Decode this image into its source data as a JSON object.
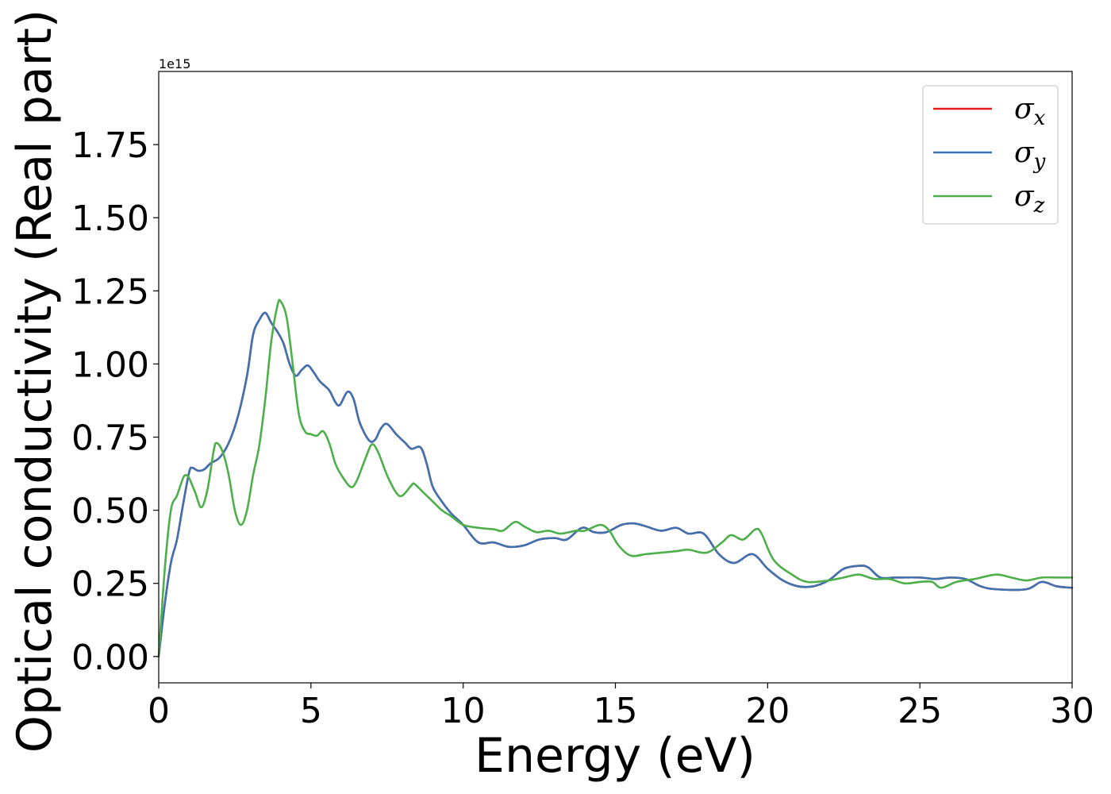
{
  "chart_data": {
    "type": "line",
    "xlabel": "Energy (eV)",
    "ylabel": "Optical conductivity (Real part)",
    "y_offset_text": "1e15",
    "xlim": [
      0,
      30
    ],
    "ylim": [
      -0.09,
      2.0
    ],
    "x_ticks": [
      0,
      5,
      10,
      15,
      20,
      25,
      30
    ],
    "x_tick_labels": [
      "0",
      "5",
      "10",
      "15",
      "20",
      "25",
      "30"
    ],
    "y_ticks": [
      0.0,
      0.25,
      0.5,
      0.75,
      1.0,
      1.25,
      1.5,
      1.75
    ],
    "y_tick_labels": [
      "0.00",
      "0.25",
      "0.50",
      "0.75",
      "1.00",
      "1.25",
      "1.50",
      "1.75"
    ],
    "grid": false,
    "legend_position": "top-right",
    "series": [
      {
        "name": "σx",
        "symbol": "σ",
        "subscript": "x",
        "color": "#e41a1c",
        "points": [
          [
            0,
            0
          ],
          [
            0.2,
            0.18
          ],
          [
            0.4,
            0.32
          ],
          [
            0.6,
            0.4
          ],
          [
            0.8,
            0.52
          ],
          [
            1.0,
            0.63
          ],
          [
            1.1,
            0.645
          ],
          [
            1.3,
            0.635
          ],
          [
            1.5,
            0.64
          ],
          [
            1.7,
            0.66
          ],
          [
            2.0,
            0.68
          ],
          [
            2.3,
            0.73
          ],
          [
            2.6,
            0.82
          ],
          [
            2.9,
            0.96
          ],
          [
            3.1,
            1.1
          ],
          [
            3.3,
            1.15
          ],
          [
            3.5,
            1.175
          ],
          [
            3.7,
            1.14
          ],
          [
            3.9,
            1.11
          ],
          [
            4.1,
            1.07
          ],
          [
            4.3,
            1.0
          ],
          [
            4.5,
            0.96
          ],
          [
            4.7,
            0.98
          ],
          [
            4.9,
            0.995
          ],
          [
            5.1,
            0.97
          ],
          [
            5.3,
            0.94
          ],
          [
            5.6,
            0.91
          ],
          [
            5.8,
            0.87
          ],
          [
            5.95,
            0.86
          ],
          [
            6.2,
            0.905
          ],
          [
            6.4,
            0.88
          ],
          [
            6.6,
            0.8
          ],
          [
            6.9,
            0.74
          ],
          [
            7.1,
            0.74
          ],
          [
            7.3,
            0.78
          ],
          [
            7.5,
            0.795
          ],
          [
            7.8,
            0.76
          ],
          [
            8.1,
            0.73
          ],
          [
            8.3,
            0.71
          ],
          [
            8.6,
            0.715
          ],
          [
            8.8,
            0.66
          ],
          [
            9.0,
            0.58
          ],
          [
            9.3,
            0.53
          ],
          [
            9.6,
            0.49
          ],
          [
            10.0,
            0.45
          ],
          [
            10.5,
            0.39
          ],
          [
            11.0,
            0.39
          ],
          [
            11.5,
            0.375
          ],
          [
            12.0,
            0.38
          ],
          [
            12.5,
            0.4
          ],
          [
            13.0,
            0.405
          ],
          [
            13.4,
            0.4
          ],
          [
            13.9,
            0.44
          ],
          [
            14.3,
            0.425
          ],
          [
            14.7,
            0.425
          ],
          [
            15.2,
            0.45
          ],
          [
            15.6,
            0.455
          ],
          [
            16.0,
            0.445
          ],
          [
            16.5,
            0.43
          ],
          [
            17.0,
            0.44
          ],
          [
            17.4,
            0.42
          ],
          [
            17.9,
            0.42
          ],
          [
            18.4,
            0.35
          ],
          [
            18.9,
            0.32
          ],
          [
            19.5,
            0.35
          ],
          [
            20.0,
            0.3
          ],
          [
            20.5,
            0.26
          ],
          [
            21.0,
            0.24
          ],
          [
            21.5,
            0.24
          ],
          [
            22.0,
            0.26
          ],
          [
            22.5,
            0.3
          ],
          [
            23.0,
            0.31
          ],
          [
            23.3,
            0.305
          ],
          [
            23.7,
            0.27
          ],
          [
            24.2,
            0.27
          ],
          [
            25.0,
            0.27
          ],
          [
            25.5,
            0.265
          ],
          [
            26.0,
            0.27
          ],
          [
            26.5,
            0.265
          ],
          [
            27.0,
            0.24
          ],
          [
            27.5,
            0.23
          ],
          [
            28.5,
            0.23
          ],
          [
            29.0,
            0.255
          ],
          [
            29.5,
            0.24
          ],
          [
            30.0,
            0.235
          ]
        ]
      },
      {
        "name": "σy",
        "symbol": "σ",
        "subscript": "y",
        "color": "#3f72b0",
        "points": [
          [
            0,
            0
          ],
          [
            0.2,
            0.18
          ],
          [
            0.4,
            0.32
          ],
          [
            0.6,
            0.4
          ],
          [
            0.8,
            0.52
          ],
          [
            1.0,
            0.63
          ],
          [
            1.1,
            0.645
          ],
          [
            1.3,
            0.635
          ],
          [
            1.5,
            0.64
          ],
          [
            1.7,
            0.66
          ],
          [
            2.0,
            0.68
          ],
          [
            2.3,
            0.73
          ],
          [
            2.6,
            0.82
          ],
          [
            2.9,
            0.96
          ],
          [
            3.1,
            1.1
          ],
          [
            3.3,
            1.15
          ],
          [
            3.5,
            1.175
          ],
          [
            3.7,
            1.14
          ],
          [
            3.9,
            1.11
          ],
          [
            4.1,
            1.07
          ],
          [
            4.3,
            1.0
          ],
          [
            4.5,
            0.96
          ],
          [
            4.7,
            0.98
          ],
          [
            4.9,
            0.995
          ],
          [
            5.1,
            0.97
          ],
          [
            5.3,
            0.94
          ],
          [
            5.6,
            0.91
          ],
          [
            5.8,
            0.87
          ],
          [
            5.95,
            0.86
          ],
          [
            6.2,
            0.905
          ],
          [
            6.4,
            0.88
          ],
          [
            6.6,
            0.8
          ],
          [
            6.9,
            0.74
          ],
          [
            7.1,
            0.74
          ],
          [
            7.3,
            0.78
          ],
          [
            7.5,
            0.795
          ],
          [
            7.8,
            0.76
          ],
          [
            8.1,
            0.73
          ],
          [
            8.3,
            0.71
          ],
          [
            8.6,
            0.715
          ],
          [
            8.8,
            0.66
          ],
          [
            9.0,
            0.58
          ],
          [
            9.3,
            0.53
          ],
          [
            9.6,
            0.49
          ],
          [
            10.0,
            0.45
          ],
          [
            10.5,
            0.39
          ],
          [
            11.0,
            0.39
          ],
          [
            11.5,
            0.375
          ],
          [
            12.0,
            0.38
          ],
          [
            12.5,
            0.4
          ],
          [
            13.0,
            0.405
          ],
          [
            13.4,
            0.4
          ],
          [
            13.9,
            0.44
          ],
          [
            14.3,
            0.425
          ],
          [
            14.7,
            0.425
          ],
          [
            15.2,
            0.45
          ],
          [
            15.6,
            0.455
          ],
          [
            16.0,
            0.445
          ],
          [
            16.5,
            0.43
          ],
          [
            17.0,
            0.44
          ],
          [
            17.4,
            0.42
          ],
          [
            17.9,
            0.42
          ],
          [
            18.4,
            0.35
          ],
          [
            18.9,
            0.32
          ],
          [
            19.5,
            0.35
          ],
          [
            20.0,
            0.3
          ],
          [
            20.5,
            0.26
          ],
          [
            21.0,
            0.24
          ],
          [
            21.5,
            0.24
          ],
          [
            22.0,
            0.26
          ],
          [
            22.5,
            0.3
          ],
          [
            23.0,
            0.31
          ],
          [
            23.3,
            0.305
          ],
          [
            23.7,
            0.27
          ],
          [
            24.2,
            0.27
          ],
          [
            25.0,
            0.27
          ],
          [
            25.5,
            0.265
          ],
          [
            26.0,
            0.27
          ],
          [
            26.5,
            0.265
          ],
          [
            27.0,
            0.24
          ],
          [
            27.5,
            0.23
          ],
          [
            28.5,
            0.23
          ],
          [
            29.0,
            0.255
          ],
          [
            29.5,
            0.24
          ],
          [
            30.0,
            0.235
          ]
        ]
      },
      {
        "name": "σz",
        "symbol": "σ",
        "subscript": "z",
        "color": "#4daf4a",
        "points": [
          [
            0,
            0
          ],
          [
            0.2,
            0.3
          ],
          [
            0.4,
            0.5
          ],
          [
            0.6,
            0.55
          ],
          [
            0.8,
            0.61
          ],
          [
            0.9,
            0.62
          ],
          [
            1.0,
            0.61
          ],
          [
            1.2,
            0.56
          ],
          [
            1.4,
            0.51
          ],
          [
            1.6,
            0.57
          ],
          [
            1.8,
            0.7
          ],
          [
            1.9,
            0.73
          ],
          [
            2.1,
            0.7
          ],
          [
            2.3,
            0.62
          ],
          [
            2.5,
            0.5
          ],
          [
            2.7,
            0.45
          ],
          [
            2.9,
            0.5
          ],
          [
            3.1,
            0.62
          ],
          [
            3.3,
            0.72
          ],
          [
            3.5,
            0.88
          ],
          [
            3.7,
            1.08
          ],
          [
            3.9,
            1.2
          ],
          [
            4.0,
            1.215
          ],
          [
            4.2,
            1.16
          ],
          [
            4.4,
            1.0
          ],
          [
            4.6,
            0.83
          ],
          [
            4.8,
            0.77
          ],
          [
            5.0,
            0.76
          ],
          [
            5.2,
            0.755
          ],
          [
            5.4,
            0.77
          ],
          [
            5.6,
            0.73
          ],
          [
            5.8,
            0.66
          ],
          [
            6.0,
            0.62
          ],
          [
            6.3,
            0.58
          ],
          [
            6.5,
            0.6
          ],
          [
            6.8,
            0.68
          ],
          [
            7.0,
            0.725
          ],
          [
            7.2,
            0.7
          ],
          [
            7.5,
            0.62
          ],
          [
            7.8,
            0.56
          ],
          [
            8.0,
            0.55
          ],
          [
            8.3,
            0.585
          ],
          [
            8.4,
            0.59
          ],
          [
            8.7,
            0.56
          ],
          [
            9.0,
            0.53
          ],
          [
            9.3,
            0.5
          ],
          [
            9.6,
            0.48
          ],
          [
            10.0,
            0.45
          ],
          [
            10.5,
            0.44
          ],
          [
            11.0,
            0.435
          ],
          [
            11.3,
            0.43
          ],
          [
            11.7,
            0.46
          ],
          [
            12.0,
            0.445
          ],
          [
            12.4,
            0.425
          ],
          [
            12.8,
            0.43
          ],
          [
            13.2,
            0.42
          ],
          [
            13.7,
            0.43
          ],
          [
            14.0,
            0.43
          ],
          [
            14.5,
            0.45
          ],
          [
            14.8,
            0.43
          ],
          [
            15.1,
            0.38
          ],
          [
            15.5,
            0.345
          ],
          [
            16.0,
            0.35
          ],
          [
            16.5,
            0.355
          ],
          [
            17.0,
            0.36
          ],
          [
            17.4,
            0.365
          ],
          [
            18.0,
            0.355
          ],
          [
            18.5,
            0.39
          ],
          [
            18.8,
            0.415
          ],
          [
            19.2,
            0.4
          ],
          [
            19.6,
            0.435
          ],
          [
            19.8,
            0.42
          ],
          [
            20.2,
            0.33
          ],
          [
            20.8,
            0.28
          ],
          [
            21.3,
            0.255
          ],
          [
            22.0,
            0.26
          ],
          [
            22.5,
            0.27
          ],
          [
            23.0,
            0.28
          ],
          [
            23.5,
            0.265
          ],
          [
            24.0,
            0.265
          ],
          [
            24.5,
            0.25
          ],
          [
            25.0,
            0.255
          ],
          [
            25.4,
            0.255
          ],
          [
            25.7,
            0.235
          ],
          [
            26.2,
            0.255
          ],
          [
            26.8,
            0.265
          ],
          [
            27.5,
            0.28
          ],
          [
            28.0,
            0.27
          ],
          [
            28.5,
            0.26
          ],
          [
            29.0,
            0.27
          ],
          [
            29.5,
            0.27
          ],
          [
            30.0,
            0.27
          ]
        ]
      }
    ]
  }
}
